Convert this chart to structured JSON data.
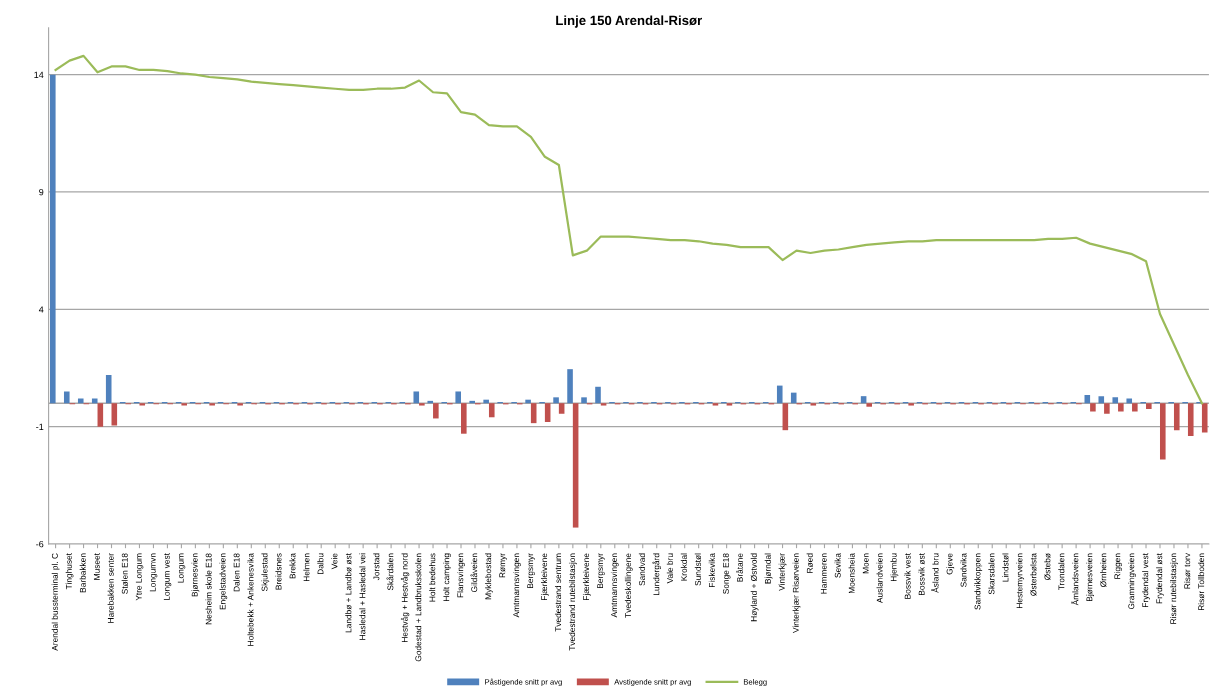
{
  "chart_data": {
    "type": "bar",
    "title": "Linje 150 Arendal-Risør",
    "categories": [
      "Arendal bussterminal pl. C",
      "Tinghuset",
      "Barbakken",
      "Museet",
      "Harebakken senter",
      "Stølen E18",
      "Ytre Longum",
      "Longumvn",
      "Longum vest",
      "Longum",
      "Bjørnesvien",
      "Nesheim skole E18",
      "Engelstadveien",
      "Dalen E18",
      "Holtebekk + Ankenesvika",
      "Skjulestad",
      "Breidsnes",
      "Brekka",
      "Helmen",
      "Dalbu",
      "Veie",
      "Landbø + Landbø øst",
      "Hasledal + Hasledal vei",
      "Jorstad",
      "Skårdalen",
      "Hestvåg + Hestvåg nord",
      "Godestad + Landbruksskolen",
      "Holt bedehus",
      "Holt camping",
      "Flansvingen",
      "Gildåveien",
      "Myklebostad",
      "Rømyr",
      "Amtmannsvingen",
      "Bergsmyr",
      "Fjærkleivene",
      "Tvedestrand sentrum",
      "Tvedestrand rutebilstasjon",
      "Fjærkleivene",
      "Bergsmyr",
      "Amtmannsvingen",
      "Tvedeskollingene",
      "Sandvad",
      "Lundergård",
      "Vale bru",
      "Krokdal",
      "Sundstøl",
      "Fiskevika",
      "Songe E18",
      "Bråtane",
      "Høyland + Østvold",
      "Bjørndal",
      "Vinterkjær",
      "Vinterkjær Risørveien",
      "Røed",
      "Hammeren",
      "Sevika",
      "Moensheia",
      "Moen",
      "Auslandveien",
      "Hjembu",
      "Bossvik vest",
      "Bossvik øst",
      "Åsland bru",
      "Gjeve",
      "Sandvika",
      "Sandvikkoppen",
      "Skarsdalen",
      "Lindstøl",
      "Hestemyrveien",
      "Østerbølsta",
      "Østebø",
      "Trondalen",
      "Åmlandsveien",
      "Bjørnesveien",
      "Ørnheien",
      "Riggen",
      "Gramningveien",
      "Frydendal vest",
      "Frydendal øst",
      "Risør rutebilstasjon",
      "Risør torv",
      "Risør Tollboden"
    ],
    "series": [
      {
        "name": "Påstigende snitt pr avg",
        "color": "#4f81bd",
        "values": [
          14.0,
          0.5,
          0.2,
          0.2,
          1.2,
          0.05,
          0.05,
          0.05,
          0.05,
          0.05,
          0.05,
          0.05,
          0.05,
          0.05,
          0.05,
          0.05,
          0.05,
          0.05,
          0.05,
          0.05,
          0.05,
          0.05,
          0.05,
          0.05,
          0.05,
          0.05,
          0.5,
          0.1,
          0.05,
          0.5,
          0.1,
          0.15,
          0.05,
          0.05,
          0.15,
          0.05,
          0.25,
          1.45,
          0.25,
          0.7,
          0.05,
          0.05,
          0.05,
          0.05,
          0.05,
          0.05,
          0.05,
          0.05,
          0.05,
          0.05,
          0.05,
          0.05,
          0.75,
          0.45,
          0.05,
          0.05,
          0.05,
          0.05,
          0.3,
          0.05,
          0.05,
          0.05,
          0.05,
          0.05,
          0.05,
          0.05,
          0.05,
          0.05,
          0.05,
          0.05,
          0.05,
          0.05,
          0.05,
          0.05,
          0.35,
          0.3,
          0.25,
          0.2,
          0.05,
          0.05,
          0.05,
          0.05,
          0.05
        ]
      },
      {
        "name": "Avstigende snitt pr avg",
        "color": "#c0504d",
        "values": [
          0.0,
          -0.05,
          -0.05,
          -1.0,
          -0.95,
          -0.05,
          -0.1,
          -0.05,
          -0.05,
          -0.1,
          -0.05,
          -0.1,
          -0.05,
          -0.1,
          -0.05,
          -0.05,
          -0.05,
          -0.05,
          -0.05,
          -0.05,
          -0.05,
          -0.05,
          -0.05,
          -0.05,
          -0.05,
          -0.05,
          -0.1,
          -0.65,
          -0.05,
          -1.3,
          -0.05,
          -0.6,
          -0.05,
          -0.05,
          -0.85,
          -0.8,
          -0.45,
          -5.3,
          -0.05,
          -0.1,
          -0.05,
          -0.05,
          -0.05,
          -0.05,
          -0.05,
          -0.05,
          -0.05,
          -0.1,
          -0.1,
          -0.05,
          -0.05,
          -0.05,
          -1.15,
          -0.05,
          -0.1,
          -0.05,
          -0.05,
          -0.05,
          -0.15,
          -0.05,
          -0.05,
          -0.1,
          -0.05,
          -0.05,
          -0.05,
          -0.05,
          -0.05,
          -0.05,
          -0.05,
          -0.05,
          -0.05,
          -0.05,
          -0.05,
          -0.05,
          -0.35,
          -0.45,
          -0.35,
          -0.35,
          -0.25,
          -2.4,
          -1.15,
          -1.4,
          -1.25
        ]
      },
      {
        "name": "Belegg",
        "type": "line",
        "color": "#9bbb59",
        "values": [
          14.2,
          14.6,
          14.8,
          14.1,
          14.35,
          14.35,
          14.2,
          14.2,
          14.15,
          14.05,
          14.0,
          13.9,
          13.85,
          13.8,
          13.7,
          13.65,
          13.6,
          13.55,
          13.5,
          13.45,
          13.4,
          13.35,
          13.35,
          13.4,
          13.4,
          13.45,
          13.75,
          13.25,
          13.2,
          12.4,
          12.3,
          11.85,
          11.8,
          11.8,
          11.35,
          10.5,
          10.15,
          6.3,
          6.5,
          7.1,
          7.1,
          7.1,
          7.05,
          7.0,
          6.95,
          6.95,
          6.9,
          6.8,
          6.75,
          6.65,
          6.65,
          6.65,
          6.1,
          6.5,
          6.4,
          6.5,
          6.55,
          6.65,
          6.75,
          6.8,
          6.85,
          6.9,
          6.9,
          6.95,
          6.95,
          6.95,
          6.95,
          6.95,
          6.95,
          6.95,
          6.95,
          7.0,
          7.0,
          7.05,
          6.8,
          6.65,
          6.5,
          6.35,
          6.05,
          3.8,
          2.5,
          1.2,
          0.0
        ]
      }
    ],
    "ylim": [
      -6,
      16
    ],
    "yticks": [
      -6,
      -1,
      4,
      9,
      14
    ],
    "grid": "y",
    "legend": "bottom",
    "marker": "none",
    "line_style": "solid",
    "ref_lines": [
      {
        "axis": "y",
        "value": 0,
        "color": "#a6a6a6"
      }
    ]
  }
}
